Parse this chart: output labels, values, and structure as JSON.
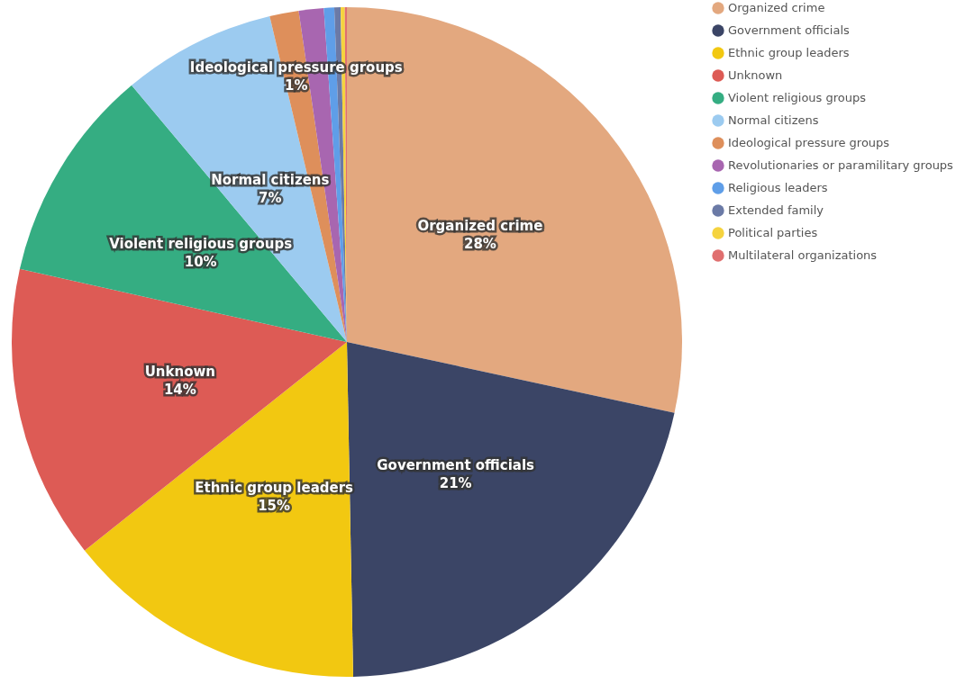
{
  "chart_data": {
    "type": "pie",
    "categories": [
      "Organized crime",
      "Government officials",
      "Ethnic group leaders",
      "Unknown",
      "Violent religious groups",
      "Normal citizens",
      "Ideological pressure groups",
      "Revolutionaries or paramilitary groups",
      "Religious leaders",
      "Extended family",
      "Political parties",
      "Multilateral organizations"
    ],
    "values": [
      28.4,
      21.3,
      14.6,
      14.2,
      10.4,
      7.4,
      1.4,
      1.2,
      0.5,
      0.3,
      0.2,
      0.1
    ],
    "colors": [
      "#e3a87f",
      "#3b4566",
      "#f2c811",
      "#dd5b55",
      "#35ad82",
      "#9ccbf0",
      "#de8f5b",
      "#a866b0",
      "#5f9ee8",
      "#6b7aa6",
      "#f5d33f",
      "#e06f6f"
    ],
    "value_labels": [
      "28%",
      "21%",
      "15%",
      "14%",
      "10%",
      "7%",
      "1%",
      null,
      null,
      null,
      null,
      null
    ],
    "legend": "top right"
  }
}
